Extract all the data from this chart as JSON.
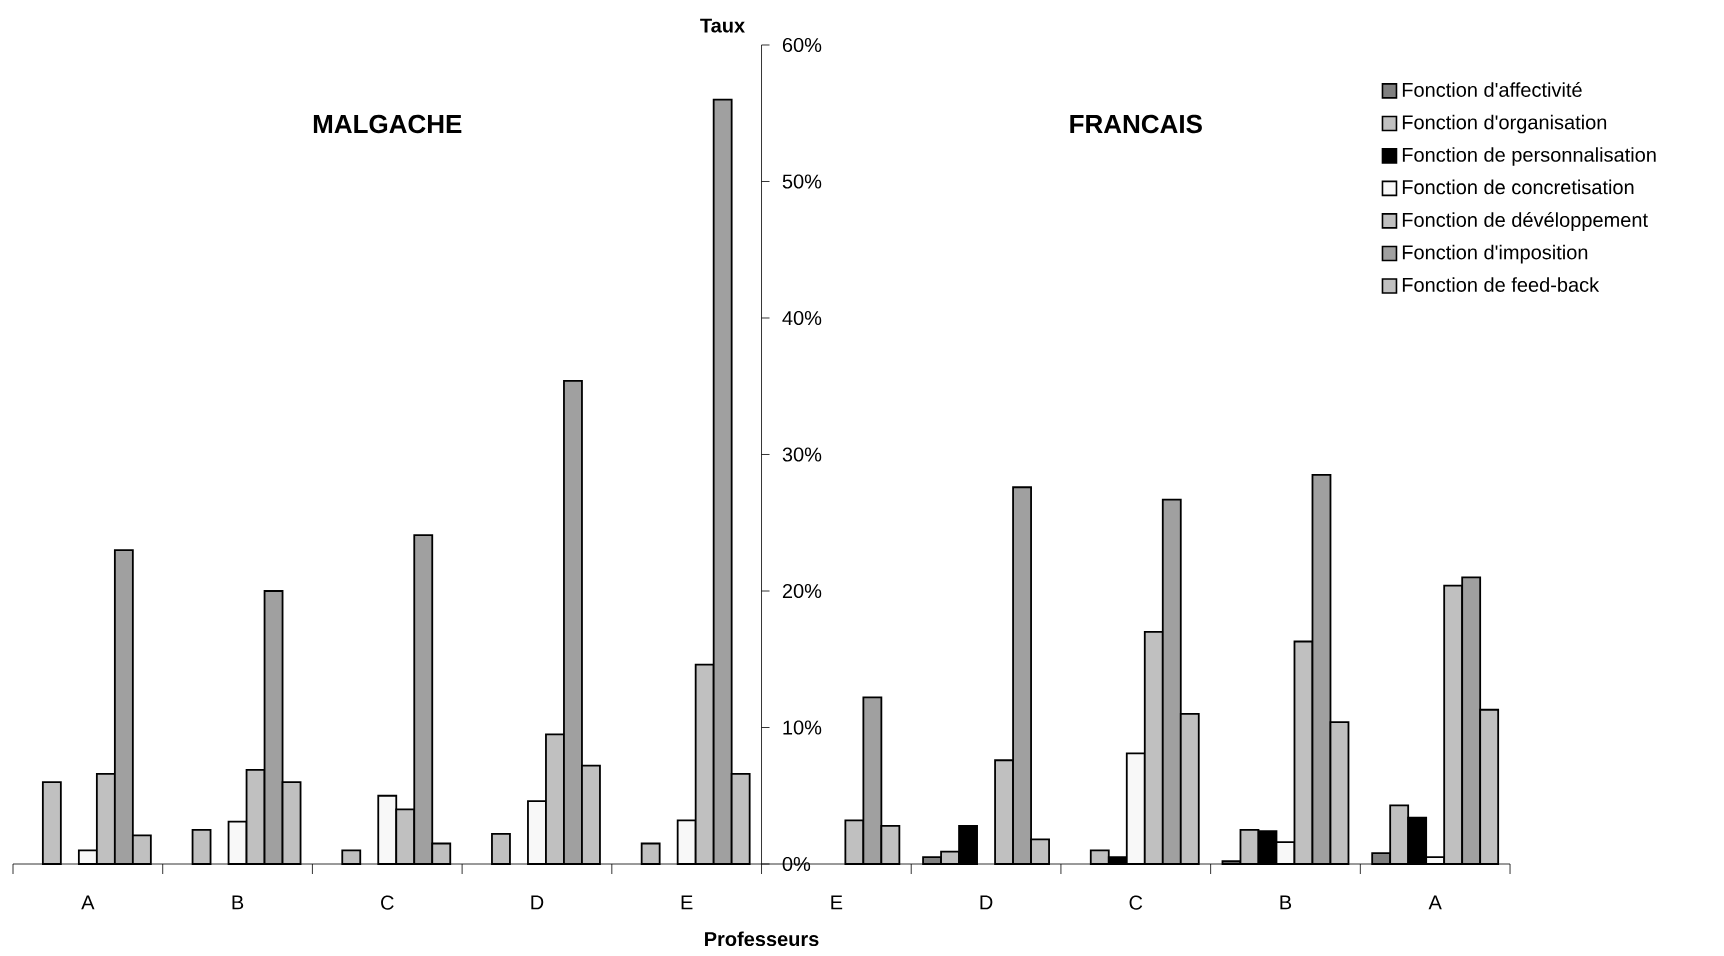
{
  "chart_data": {
    "type": "bar",
    "xlabel": "Professeurs",
    "ylabel": "Taux",
    "annotations": [
      "MALGACHE",
      "FRANCAIS"
    ],
    "categories": [
      "A",
      "B",
      "C",
      "D",
      "E",
      "E",
      "D",
      "C",
      "B",
      "A"
    ],
    "series": [
      {
        "name": "Fonction d'affectivité",
        "color": "#808080",
        "values": [
          null,
          null,
          null,
          null,
          null,
          null,
          0.5,
          null,
          0.2,
          0.8
        ]
      },
      {
        "name": "Fonction d'organisation",
        "color": "#c0c0c0",
        "values": [
          6.0,
          2.5,
          1.0,
          2.2,
          1.5,
          null,
          0.9,
          1.0,
          2.5,
          4.3
        ]
      },
      {
        "name": "Fonction de personnalisation",
        "color": "#000000",
        "values": [
          null,
          null,
          null,
          null,
          null,
          null,
          2.8,
          0.5,
          2.4,
          3.4
        ]
      },
      {
        "name": "Fonction de concretisation",
        "color": "#f8f8f8",
        "values": [
          1.0,
          3.1,
          5.0,
          4.6,
          3.2,
          null,
          null,
          8.1,
          1.6,
          0.5
        ]
      },
      {
        "name": "Fonction de dévéloppement",
        "color": "#c0c0c0",
        "values": [
          6.6,
          6.9,
          4.0,
          9.5,
          14.6,
          3.2,
          7.6,
          17.0,
          16.3,
          20.4
        ]
      },
      {
        "name": "Fonction d'imposition",
        "color": "#a0a0a0",
        "values": [
          23.0,
          20.0,
          24.1,
          35.4,
          56.0,
          12.2,
          27.6,
          26.7,
          28.5,
          21.0
        ]
      },
      {
        "name": "Fonction de feed-back",
        "color": "#c0c0c0",
        "values": [
          2.1,
          6.0,
          1.5,
          7.2,
          6.6,
          2.8,
          1.8,
          11.0,
          10.4,
          11.3
        ]
      }
    ],
    "ylim": [
      0,
      60
    ],
    "yticks": [
      {
        "value": 0,
        "label": "0%"
      },
      {
        "value": 10,
        "label": "10%"
      },
      {
        "value": 20,
        "label": "20%"
      },
      {
        "value": 30,
        "label": "30%"
      },
      {
        "value": 40,
        "label": "40%"
      },
      {
        "value": 50,
        "label": "50%"
      },
      {
        "value": 60,
        "label": "60%"
      }
    ],
    "legend": "top right"
  }
}
